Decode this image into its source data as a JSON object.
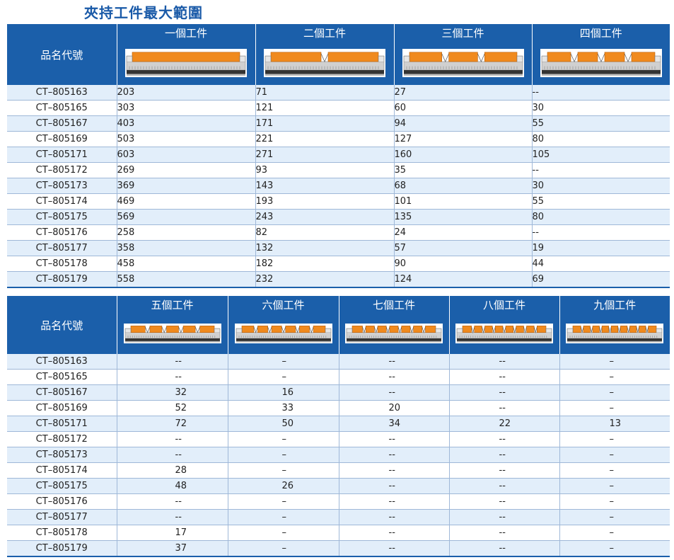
{
  "title": "夾持工件最大範圍",
  "name_header": "品名代號",
  "table1": {
    "columns": [
      {
        "label": "一個工件",
        "blocks": 1
      },
      {
        "label": "二個工件",
        "blocks": 2
      },
      {
        "label": "三個工件",
        "blocks": 3
      },
      {
        "label": "四個工件",
        "blocks": 4
      }
    ],
    "rows": [
      {
        "name": "CT–805163",
        "values": [
          "203",
          "71",
          "27",
          "--"
        ]
      },
      {
        "name": "CT–805165",
        "values": [
          "303",
          "121",
          "60",
          "30"
        ]
      },
      {
        "name": "CT–805167",
        "values": [
          "403",
          "171",
          "94",
          "55"
        ]
      },
      {
        "name": "CT–805169",
        "values": [
          "503",
          "221",
          "127",
          "80"
        ]
      },
      {
        "name": "CT–805171",
        "values": [
          "603",
          "271",
          "160",
          "105"
        ]
      },
      {
        "name": "CT–805172",
        "values": [
          "269",
          "93",
          "35",
          "--"
        ]
      },
      {
        "name": "CT–805173",
        "values": [
          "369",
          "143",
          "68",
          "30"
        ]
      },
      {
        "name": "CT–805174",
        "values": [
          "469",
          "193",
          "101",
          "55"
        ]
      },
      {
        "name": "CT–805175",
        "values": [
          "569",
          "243",
          "135",
          "80"
        ]
      },
      {
        "name": "CT–805176",
        "values": [
          "258",
          "82",
          "24",
          "--"
        ]
      },
      {
        "name": "CT–805177",
        "values": [
          "358",
          "132",
          "57",
          "19"
        ]
      },
      {
        "name": "CT–805178",
        "values": [
          "458",
          "182",
          "90",
          "44"
        ]
      },
      {
        "name": "CT–805179",
        "values": [
          "558",
          "232",
          "124",
          "69"
        ]
      }
    ]
  },
  "table2": {
    "columns": [
      {
        "label": "五個工件",
        "blocks": 5
      },
      {
        "label": "六個工件",
        "blocks": 6
      },
      {
        "label": "七個工件",
        "blocks": 7
      },
      {
        "label": "八個工件",
        "blocks": 8
      },
      {
        "label": "九個工件",
        "blocks": 9
      }
    ],
    "rows": [
      {
        "name": "CT–805163",
        "values": [
          "--",
          "–",
          "--",
          "--",
          "–"
        ]
      },
      {
        "name": "CT–805165",
        "values": [
          "--",
          "–",
          "--",
          "--",
          "–"
        ]
      },
      {
        "name": "CT–805167",
        "values": [
          "32",
          "16",
          "--",
          "--",
          "–"
        ]
      },
      {
        "name": "CT–805169",
        "values": [
          "52",
          "33",
          "20",
          "--",
          "–"
        ]
      },
      {
        "name": "CT–805171",
        "values": [
          "72",
          "50",
          "34",
          "22",
          "13"
        ]
      },
      {
        "name": "CT–805172",
        "values": [
          "--",
          "–",
          "--",
          "--",
          "–"
        ]
      },
      {
        "name": "CT–805173",
        "values": [
          "--",
          "–",
          "--",
          "--",
          "–"
        ]
      },
      {
        "name": "CT–805174",
        "values": [
          "28",
          "–",
          "--",
          "--",
          "–"
        ]
      },
      {
        "name": "CT–805175",
        "values": [
          "48",
          "26",
          "--",
          "--",
          "–"
        ]
      },
      {
        "name": "CT–805176",
        "values": [
          "--",
          "–",
          "--",
          "--",
          "–"
        ]
      },
      {
        "name": "CT–805177",
        "values": [
          "--",
          "–",
          "--",
          "--",
          "–"
        ]
      },
      {
        "name": "CT–805178",
        "values": [
          "17",
          "–",
          "--",
          "--",
          "–"
        ]
      },
      {
        "name": "CT–805179",
        "values": [
          "37",
          "–",
          "--",
          "--",
          "–"
        ]
      }
    ]
  },
  "colors": {
    "header_blue": "#1b5faa",
    "title_blue": "#1a5aa8",
    "row_tint": "#e2eefa",
    "workpiece_orange": "#f08a1e",
    "rail_grey": "#c8c8c8"
  }
}
